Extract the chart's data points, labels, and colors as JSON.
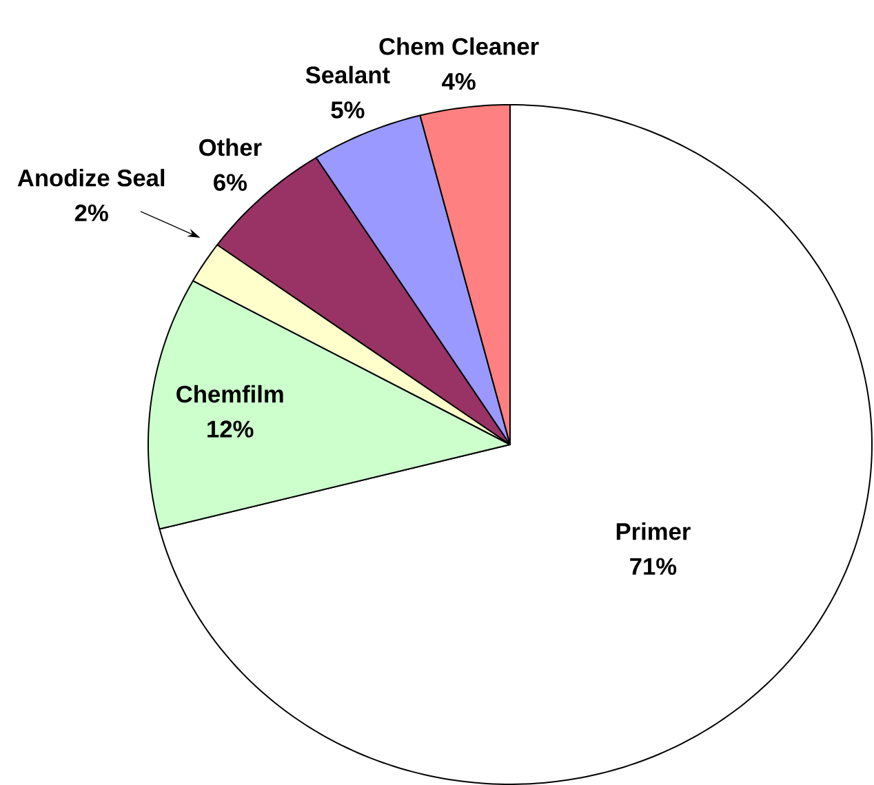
{
  "chart_data": {
    "type": "pie",
    "categories": [
      "Primer",
      "Chemfilm",
      "Anodize Seal",
      "Other",
      "Sealant",
      "Chem Cleaner"
    ],
    "values": [
      71,
      12,
      2,
      6,
      5,
      4
    ],
    "colors": [
      "#ffffff",
      "#ccffcc",
      "#ffffcc",
      "#993366",
      "#9999ff",
      "#ff8080"
    ],
    "value_labels": [
      "71%",
      "12%",
      "2%",
      "6%",
      "5%",
      "4%"
    ]
  }
}
